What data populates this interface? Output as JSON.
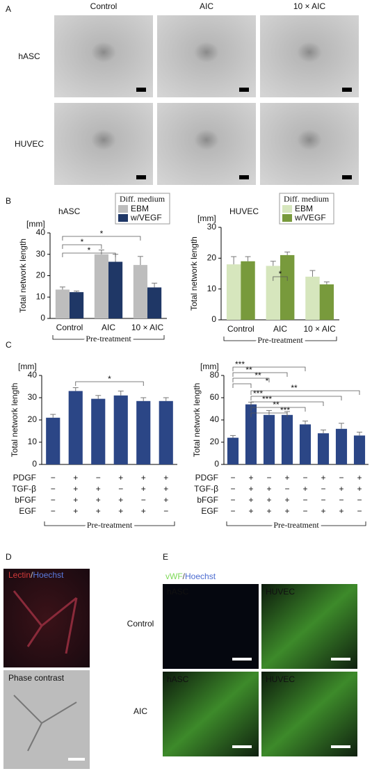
{
  "figure": {
    "panels": [
      "A",
      "B",
      "C",
      "D",
      "E"
    ],
    "panel_a": {
      "columns": [
        "Control",
        "AIC",
        "10 × AIC"
      ],
      "rows": [
        "hASC",
        "HUVEC"
      ]
    },
    "panel_d": {
      "stain": "Lectin",
      "slash": "/",
      "counterstain": "Hoechst",
      "phase": "Phase contrast"
    },
    "panel_e": {
      "stain": "vWF",
      "slash": "/",
      "counterstain": "Hoechst",
      "image_labels": [
        "hASC",
        "HUVEC",
        "hASC",
        "HUVEC"
      ],
      "rows": [
        "Control",
        "AIC"
      ]
    }
  },
  "chart_data": [
    {
      "type": "bar",
      "title": "hASC",
      "unit": "[mm]",
      "ylabel": "Total network length",
      "xlabel": "Pre-treatment",
      "legend_title": "Diff. medium",
      "categories": [
        "Control",
        "AIC",
        "10 × AIC"
      ],
      "series": [
        {
          "name": "EBM",
          "color": "#bdbdbd",
          "values": [
            13.5,
            30,
            25
          ],
          "errors": [
            1.2,
            2,
            4
          ]
        },
        {
          "name": "w/VEGF",
          "color": "#1f3766",
          "values": [
            12.3,
            26.5,
            14.5
          ],
          "errors": [
            0.5,
            3.5,
            2
          ]
        }
      ],
      "ylim": [
        0,
        40
      ],
      "yticks": [
        0,
        10,
        20,
        30,
        40
      ],
      "annotations": [
        "*",
        "*",
        "*"
      ]
    },
    {
      "type": "bar",
      "title": "HUVEC",
      "unit": "[mm]",
      "ylabel": "Total network length",
      "xlabel": "Pre-treatment",
      "legend_title": "Diff. medium",
      "categories": [
        "Control",
        "AIC",
        "10 × AIC"
      ],
      "series": [
        {
          "name": "EBM",
          "color": "#d6e6bd",
          "values": [
            18,
            17.5,
            14
          ],
          "errors": [
            2.5,
            1.5,
            2
          ]
        },
        {
          "name": "w/VEGF",
          "color": "#789a3c",
          "values": [
            19,
            21,
            11.5
          ],
          "errors": [
            1.5,
            1,
            0.8
          ]
        }
      ],
      "ylim": [
        0,
        30
      ],
      "yticks": [
        0,
        10,
        20,
        30
      ],
      "annotations": [
        "*"
      ]
    },
    {
      "type": "bar",
      "unit": "[mm]",
      "ylabel": "Total network length",
      "xlabel": "Pre-treatment",
      "categories": [
        null,
        null,
        null,
        null,
        null,
        null
      ],
      "series": [
        {
          "color": "#2b4686",
          "values": [
            21,
            33,
            29.5,
            31,
            28.5,
            28.5
          ],
          "errors": [
            1.5,
            1.5,
            1.5,
            2,
            1.5,
            1.5
          ]
        }
      ],
      "factors": [
        {
          "name": "PDGF",
          "marks": [
            "−",
            "+",
            "−",
            "+",
            "+",
            "+"
          ]
        },
        {
          "name": "TGF-β",
          "marks": [
            "−",
            "+",
            "+",
            "−",
            "+",
            "+"
          ]
        },
        {
          "name": "bFGF",
          "marks": [
            "−",
            "+",
            "+",
            "+",
            "−",
            "+"
          ]
        },
        {
          "name": "EGF",
          "marks": [
            "−",
            "+",
            "+",
            "+",
            "+",
            "−"
          ]
        }
      ],
      "ylim": [
        0,
        40
      ],
      "yticks": [
        0,
        10,
        20,
        30,
        40
      ],
      "annotations": [
        "*"
      ]
    },
    {
      "type": "bar",
      "unit": "[mm]",
      "ylabel": "Total network length",
      "xlabel": "Pre-treatment",
      "categories": [
        null,
        null,
        null,
        null,
        null,
        null,
        null,
        null
      ],
      "series": [
        {
          "color": "#2b4686",
          "values": [
            24,
            54,
            44.5,
            44.5,
            36,
            28,
            32,
            26
          ],
          "errors": [
            2,
            2,
            4,
            3,
            3,
            3,
            5,
            3
          ]
        }
      ],
      "factors": [
        {
          "name": "PDGF",
          "marks": [
            "−",
            "+",
            "−",
            "+",
            "−",
            "+",
            "−",
            "+"
          ]
        },
        {
          "name": "TGF-β",
          "marks": [
            "−",
            "+",
            "+",
            "−",
            "+",
            "−",
            "+",
            "+"
          ]
        },
        {
          "name": "bFGF",
          "marks": [
            "−",
            "+",
            "+",
            "+",
            "−",
            "−",
            "−",
            "−"
          ]
        },
        {
          "name": "EGF",
          "marks": [
            "−",
            "+",
            "+",
            "+",
            "−",
            "+",
            "+",
            "−"
          ]
        }
      ],
      "ylim": [
        0,
        80
      ],
      "yticks": [
        0,
        20,
        40,
        60,
        80
      ],
      "annotations": [
        "***",
        "**",
        "**",
        "*",
        "**",
        "***",
        "***",
        "**",
        "***"
      ]
    }
  ]
}
